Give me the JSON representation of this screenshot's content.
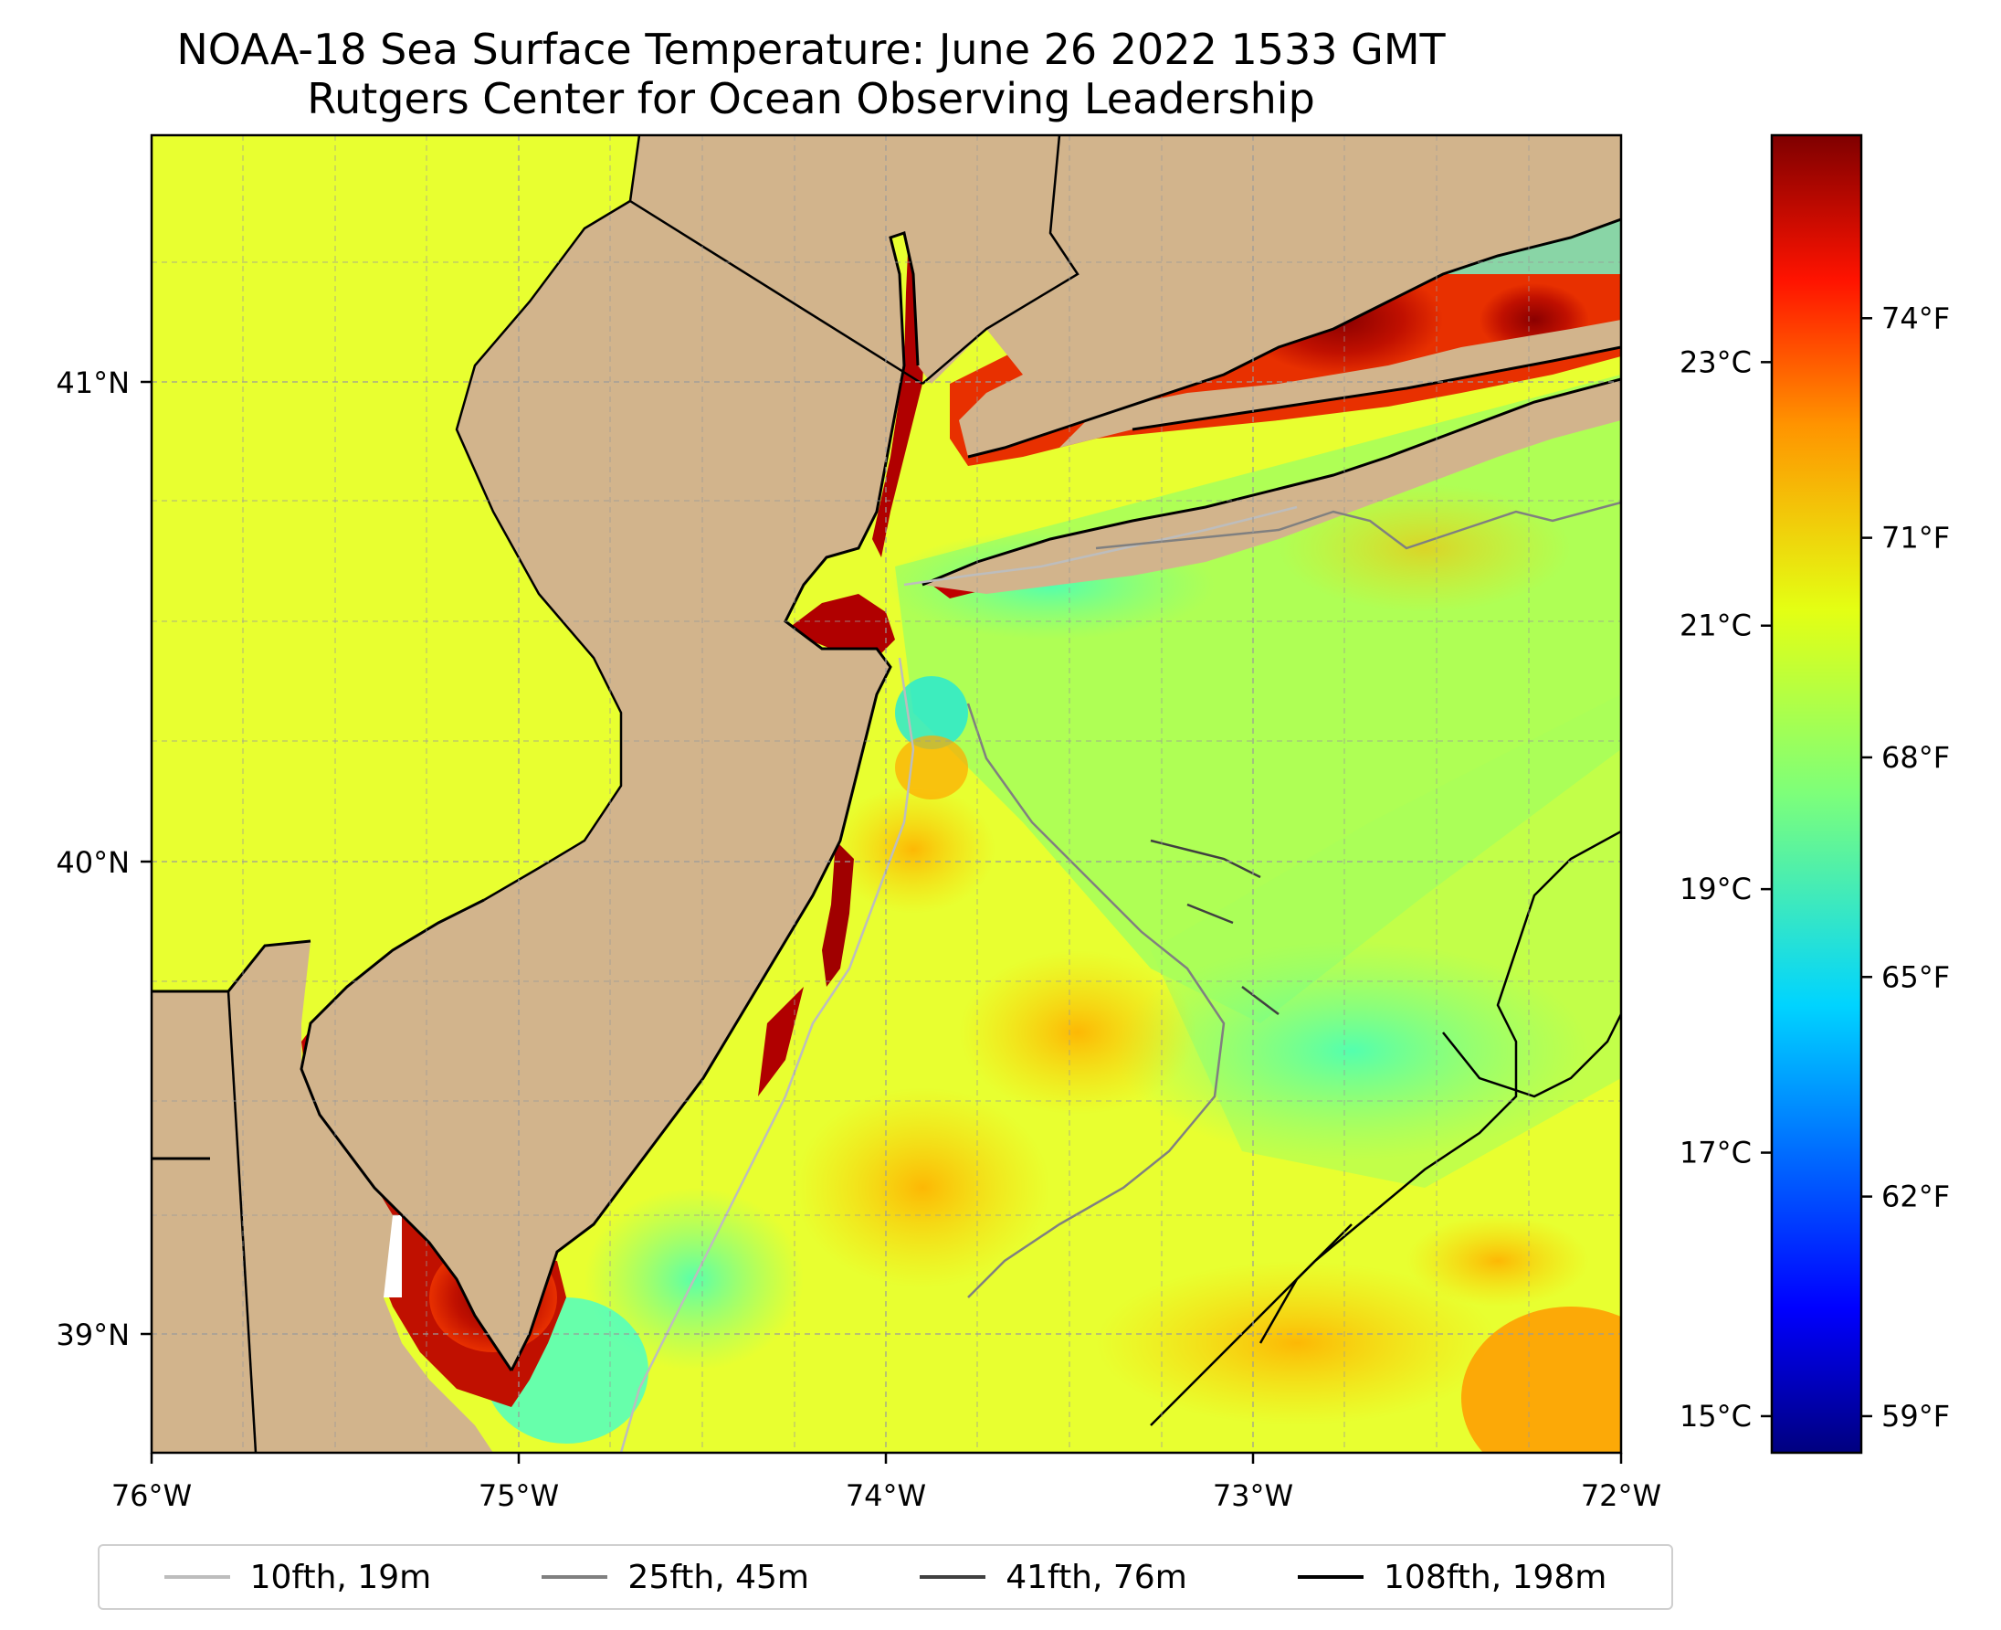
{
  "title": {
    "line1": "NOAA-18 Sea Surface Temperature: June 26 2022 1533 GMT",
    "line2": "Rutgers Center for Ocean Observing Leadership"
  },
  "map": {
    "lon_range": [
      -76,
      -72
    ],
    "lat_range": [
      38.75,
      41.5
    ],
    "lon_ticks": [
      "76°W",
      "75°W",
      "74°W",
      "73°W",
      "72°W"
    ],
    "lat_ticks": [
      "41°N",
      "40°N",
      "39°N"
    ],
    "gridlines": true,
    "land_color": "#d2b48c"
  },
  "colorbar": {
    "colormap": "jet",
    "celsius_ticks": [
      "23°C",
      "21°C",
      "19°C",
      "17°C",
      "15°C"
    ],
    "fahrenheit_ticks": [
      "74°F",
      "71°F",
      "68°F",
      "65°F",
      "62°F",
      "59°F"
    ],
    "min_f": 58.5,
    "max_f": 76.5
  },
  "legend": [
    {
      "label": "10fth, 19m",
      "color": "#bdbdbd"
    },
    {
      "label": "25fth, 45m",
      "color": "#808080"
    },
    {
      "label": "41fth, 76m",
      "color": "#404040"
    },
    {
      "label": "108fth, 198m",
      "color": "#000000"
    }
  ]
}
